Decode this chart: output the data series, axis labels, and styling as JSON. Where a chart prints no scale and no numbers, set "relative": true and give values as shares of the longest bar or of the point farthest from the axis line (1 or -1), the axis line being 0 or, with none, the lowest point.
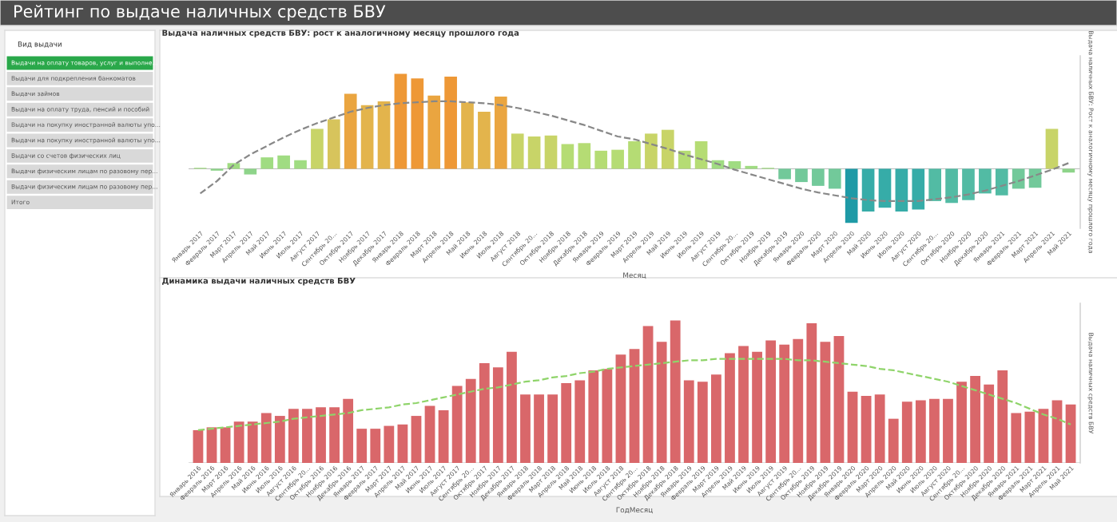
{
  "chart_data": [
    {
      "type": "other",
      "title": "Рейтинг по выдаче наличных средств БВУ",
      "subtitle": "Вид выдачи",
      "annotations": [
        "Выдачи на оплату товаров, услуг и выполне...",
        "Выдачи для подкрепления банкоматов",
        "Выдачи займов",
        "Выдачи на оплату труда, пенсий и пособий",
        "Выдачи на покупку иностранной валюты упо...",
        "Выдачи на покупку иностранной валюты упо...",
        "Выдачи со счетов физических лиц",
        "Выдачи физическим лицам по разовому пер...",
        "Выдачи физическим лицам по разовому пер...",
        "Итого"
      ]
    },
    {
      "type": "bar",
      "title": "Выдача наличных средств БВУ: рост к аналогичному месяцу прошлого года",
      "xlabel": "Месяц",
      "ylabel": "Выдача наличных БВУ: Рост к аналогичному месяцу прошлого года",
      "relative": true,
      "grid": false,
      "legend": false,
      "categories": [
        "Январь 2017",
        "Февраль 2017",
        "Март 2017",
        "Апрель 2017",
        "Май 2017",
        "Июнь 2017",
        "Июль 2017",
        "Август 2017",
        "Сентябрь 20...",
        "Октябрь 2017",
        "Ноябрь 2017",
        "Декабрь 2017",
        "Январь 2018",
        "Февраль 2018",
        "Март 2018",
        "Апрель 2018",
        "Май 2018",
        "Июнь 2018",
        "Июль 2018",
        "Август 2018",
        "Сентябрь 20...",
        "Октябрь 2018",
        "Ноябрь 2018",
        "Декабрь 2018",
        "Январь 2019",
        "Февраль 2019",
        "Март 2019",
        "Апрель 2019",
        "Май 2019",
        "Июнь 2019",
        "Июль 2019",
        "Август 2019",
        "Сентябрь 20...",
        "Октябрь 2019",
        "Ноябрь 2019",
        "Декабрь 2019",
        "Январь 2020",
        "Февраль 2020",
        "Март 2020",
        "Апрель 2020",
        "Май 2020",
        "Июнь 2020",
        "Июль 2020",
        "Август 2020",
        "Сентябрь 20...",
        "Октябрь 2020",
        "Ноябрь 2020",
        "Декабрь 2020",
        "Январь 2021",
        "Февраль 2021",
        "Март 2021",
        "Апрель 2021",
        "Май 2021"
      ],
      "series": [
        {
          "type": "bar",
          "values": [
            0.01,
            -0.02,
            0.06,
            -0.06,
            0.12,
            0.14,
            0.09,
            0.42,
            0.52,
            0.79,
            0.67,
            0.71,
            1,
            0.95,
            0.77,
            0.97,
            0.7,
            0.6,
            0.76,
            0.37,
            0.34,
            0.35,
            0.26,
            0.27,
            0.19,
            0.2,
            0.29,
            0.37,
            0.41,
            0.19,
            0.29,
            0.09,
            0.08,
            0.03,
            0.01,
            -0.11,
            -0.14,
            -0.18,
            -0.21,
            -0.57,
            -0.45,
            -0.41,
            -0.45,
            -0.43,
            -0.34,
            -0.36,
            -0.33,
            -0.26,
            -0.28,
            -0.21,
            -0.2,
            0.42,
            -0.04
          ],
          "colors": [
            "#a0dc82",
            "#8ed48a",
            "#a0dc82",
            "#8ed48a",
            "#a0dc82",
            "#a0dc82",
            "#a0dc82",
            "#c8d468",
            "#d7c45c",
            "#eaa540",
            "#e3b44c",
            "#e3b44c",
            "#ee9836",
            "#ee9836",
            "#eaa540",
            "#ee9836",
            "#e3b44c",
            "#e3b44c",
            "#eaa540",
            "#c8d468",
            "#c8d468",
            "#c8d468",
            "#b5dc74",
            "#b5dc74",
            "#b5dc74",
            "#b5dc74",
            "#b5dc74",
            "#c8d468",
            "#c8d468",
            "#b5dc74",
            "#b5dc74",
            "#a0dc82",
            "#a0dc82",
            "#a0dc82",
            "#a0dc82",
            "#72c99a",
            "#72c99a",
            "#72c99a",
            "#72c99a",
            "#1e9aa6",
            "#36aca8",
            "#36aca8",
            "#36aca8",
            "#36aca8",
            "#52bba4",
            "#52bba4",
            "#52bba4",
            "#52bba4",
            "#52bba4",
            "#72c99a",
            "#72c99a",
            "#c8d468",
            "#8ed48a"
          ]
        },
        {
          "type": "line",
          "color": "#888888",
          "line_style": "dashed",
          "values": [
            -0.26,
            -0.13,
            0.04,
            0.15,
            0.24,
            0.33,
            0.41,
            0.48,
            0.54,
            0.6,
            0.64,
            0.67,
            0.69,
            0.7,
            0.71,
            0.71,
            0.7,
            0.69,
            0.67,
            0.64,
            0.6,
            0.56,
            0.51,
            0.46,
            0.4,
            0.34,
            0.31,
            0.26,
            0.21,
            0.15,
            0.1,
            0.05,
            -0.01,
            -0.06,
            -0.11,
            -0.16,
            -0.21,
            -0.25,
            -0.28,
            -0.31,
            -0.33,
            -0.34,
            -0.34,
            -0.34,
            -0.32,
            -0.3,
            -0.27,
            -0.23,
            -0.18,
            -0.13,
            -0.07,
            -0.01,
            0.06
          ]
        }
      ]
    },
    {
      "type": "bar",
      "title": "Динамика выдачи наличных средств БВУ",
      "xlabel": "ГодМесяц",
      "ylabel": "Выдача наличных средств БВУ",
      "relative": true,
      "grid": false,
      "legend": false,
      "categories": [
        "Январь 2016",
        "Февраль 2016",
        "Март 2016",
        "Апрель 2016",
        "Май 2016",
        "Июнь 2016",
        "Июль 2016",
        "Август 2016",
        "Сентябрь 20...",
        "Октябрь 2016",
        "Ноябрь 2016",
        "Декабрь 2016",
        "Январь 2017",
        "Февраль 2017",
        "Март 2017",
        "Апрель 2017",
        "Май 2017",
        "Июнь 2017",
        "Июль 2017",
        "Август 2017",
        "Сентябрь 20...",
        "Октябрь 2017",
        "Ноябрь 2017",
        "Декабрь 2017",
        "Январь 2018",
        "Февраль 2018",
        "Март 2018",
        "Апрель 2018",
        "Май 2018",
        "Июнь 2018",
        "Июль 2018",
        "Август 2018",
        "Сентябрь 20...",
        "Октябрь 2018",
        "Ноябрь 2018",
        "Декабрь 2018",
        "Январь 2019",
        "Февраль 2019",
        "Март 2019",
        "Апрель 2019",
        "Май 2019",
        "Июнь 2019",
        "Июль 2019",
        "Август 2019",
        "Сентябрь 20...",
        "Октябрь 2019",
        "Ноябрь 2019",
        "Декабрь 2019",
        "Январь 2020",
        "Февраль 2020",
        "Март 2020",
        "Апрель 2020",
        "Май 2020",
        "Июнь 2020",
        "Июль 2020",
        "Август 2020",
        "Сентябрь 20...",
        "Октябрь 2020",
        "Ноябрь 2020",
        "Декабрь 2020",
        "Январь 2021",
        "Февраль 2021",
        "Март 2021",
        "Апрель 2021",
        "Май 2021"
      ],
      "series": [
        {
          "type": "bar",
          "color": "#d9676a",
          "values": [
            0.23,
            0.25,
            0.25,
            0.29,
            0.29,
            0.35,
            0.33,
            0.38,
            0.38,
            0.39,
            0.39,
            0.45,
            0.24,
            0.24,
            0.26,
            0.27,
            0.33,
            0.4,
            0.37,
            0.54,
            0.59,
            0.7,
            0.67,
            0.78,
            0.48,
            0.48,
            0.48,
            0.56,
            0.58,
            0.65,
            0.66,
            0.76,
            0.8,
            0.96,
            0.85,
            1,
            0.58,
            0.57,
            0.62,
            0.77,
            0.82,
            0.78,
            0.86,
            0.83,
            0.87,
            0.98,
            0.85,
            0.89,
            0.5,
            0.47,
            0.48,
            0.31,
            0.43,
            0.44,
            0.45,
            0.45,
            0.57,
            0.61,
            0.55,
            0.65,
            0.35,
            0.36,
            0.38,
            0.44,
            0.41
          ]
        },
        {
          "type": "line",
          "color": "#8fd46a",
          "line_style": "dashed",
          "values": [
            0.23,
            0.24,
            0.25,
            0.26,
            0.27,
            0.28,
            0.29,
            0.31,
            0.32,
            0.33,
            0.34,
            0.35,
            0.37,
            0.38,
            0.39,
            0.41,
            0.42,
            0.44,
            0.46,
            0.48,
            0.5,
            0.52,
            0.53,
            0.55,
            0.57,
            0.58,
            0.6,
            0.61,
            0.63,
            0.64,
            0.66,
            0.67,
            0.68,
            0.69,
            0.7,
            0.71,
            0.72,
            0.72,
            0.73,
            0.73,
            0.73,
            0.73,
            0.73,
            0.73,
            0.72,
            0.72,
            0.71,
            0.7,
            0.69,
            0.68,
            0.66,
            0.65,
            0.63,
            0.61,
            0.59,
            0.57,
            0.54,
            0.51,
            0.48,
            0.45,
            0.42,
            0.38,
            0.34,
            0.31,
            0.27
          ]
        }
      ]
    }
  ]
}
